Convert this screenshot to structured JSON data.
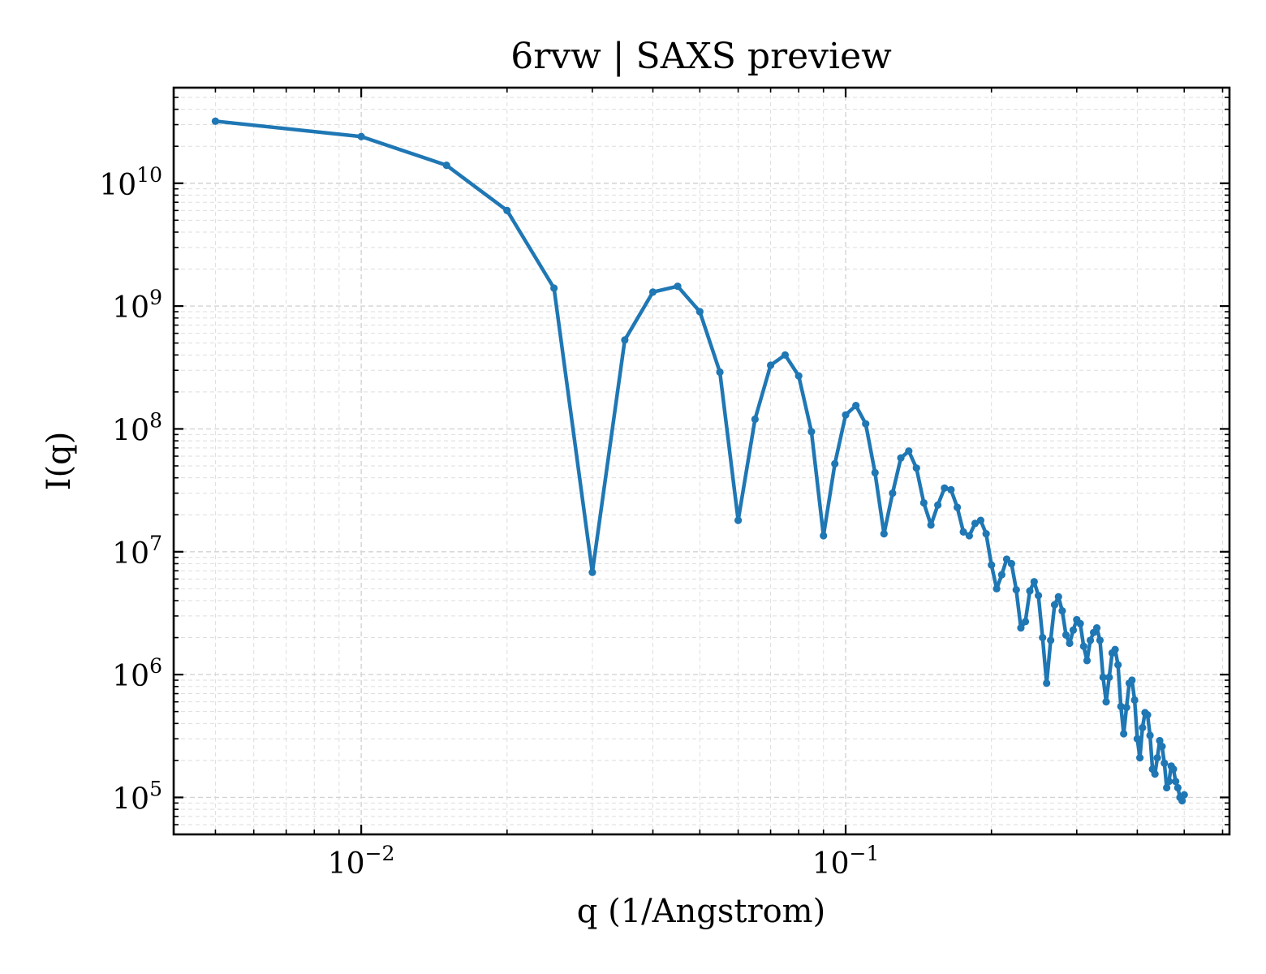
{
  "chart_data": {
    "type": "line",
    "title": "6rvw | SAXS preview",
    "xlabel": "q (1/Angstrom)",
    "ylabel": "I(q)",
    "xscale": "log",
    "yscale": "log",
    "xlim": [
      0.0041,
      0.62
    ],
    "ylim": [
      50000,
      60000000000
    ],
    "grid": true,
    "x_ticks": [
      {
        "value": 0.01,
        "base": "10",
        "exp": "−2"
      },
      {
        "value": 0.1,
        "base": "10",
        "exp": "−1"
      }
    ],
    "y_ticks": [
      {
        "value": 100000,
        "base": "10",
        "exp": "5"
      },
      {
        "value": 1000000,
        "base": "10",
        "exp": "6"
      },
      {
        "value": 10000000,
        "base": "10",
        "exp": "7"
      },
      {
        "value": 100000000,
        "base": "10",
        "exp": "8"
      },
      {
        "value": 1000000000,
        "base": "10",
        "exp": "9"
      },
      {
        "value": 10000000000,
        "base": "10",
        "exp": "10"
      }
    ],
    "series": [
      {
        "color": "#1f77b4",
        "x": [
          0.005,
          0.01,
          0.015,
          0.02,
          0.025,
          0.03,
          0.035,
          0.04,
          0.045,
          0.05,
          0.055,
          0.06,
          0.065,
          0.07,
          0.075,
          0.08,
          0.085,
          0.09,
          0.095,
          0.1,
          0.105,
          0.11,
          0.115,
          0.12,
          0.125,
          0.13,
          0.135,
          0.14,
          0.145,
          0.15,
          0.155,
          0.16,
          0.165,
          0.17,
          0.175,
          0.18,
          0.185,
          0.19,
          0.195,
          0.2,
          0.205,
          0.21,
          0.215,
          0.22,
          0.225,
          0.23,
          0.235,
          0.24,
          0.245,
          0.25,
          0.255,
          0.26,
          0.265,
          0.27,
          0.275,
          0.28,
          0.285,
          0.29,
          0.295,
          0.3,
          0.305,
          0.31,
          0.315,
          0.32,
          0.325,
          0.33,
          0.335,
          0.34,
          0.345,
          0.35,
          0.355,
          0.36,
          0.365,
          0.37,
          0.375,
          0.38,
          0.385,
          0.39,
          0.395,
          0.4,
          0.405,
          0.41,
          0.415,
          0.42,
          0.425,
          0.43,
          0.435,
          0.44,
          0.445,
          0.45,
          0.455,
          0.46,
          0.465,
          0.47,
          0.475,
          0.48,
          0.485,
          0.49,
          0.495,
          0.5
        ],
        "y": [
          32000000000,
          24000000000,
          14000000000,
          6000000000,
          1400000000,
          6800000,
          530000000,
          1300000000,
          1450000000,
          900000000,
          290000000,
          18000000,
          120000000,
          330000000,
          400000000,
          270000000,
          95000000,
          13500000,
          52000000,
          130000000,
          155000000,
          110000000,
          44000000,
          14000000,
          30000000,
          58000000,
          66000000,
          48000000,
          25000000,
          16500000,
          24000000,
          33000000,
          32000000,
          23000000,
          14500000,
          13500000,
          17000000,
          18000000,
          14000000,
          7800000,
          5000000,
          6500000,
          8700000,
          8000000,
          4900000,
          2400000,
          2700000,
          4800000,
          5700000,
          4400000,
          2000000,
          850000,
          1900000,
          3700000,
          4300000,
          3300000,
          2100000,
          1800000,
          2300000,
          2800000,
          2600000,
          1700000,
          1300000,
          1900000,
          2200000,
          2400000,
          1900000,
          950000,
          600000,
          950000,
          1500000,
          1600000,
          1200000,
          550000,
          330000,
          540000,
          850000,
          900000,
          620000,
          300000,
          210000,
          370000,
          490000,
          470000,
          320000,
          170000,
          155000,
          210000,
          290000,
          260000,
          190000,
          120000,
          135000,
          180000,
          170000,
          135000,
          120000,
          100000,
          94000,
          105000
        ]
      }
    ]
  }
}
